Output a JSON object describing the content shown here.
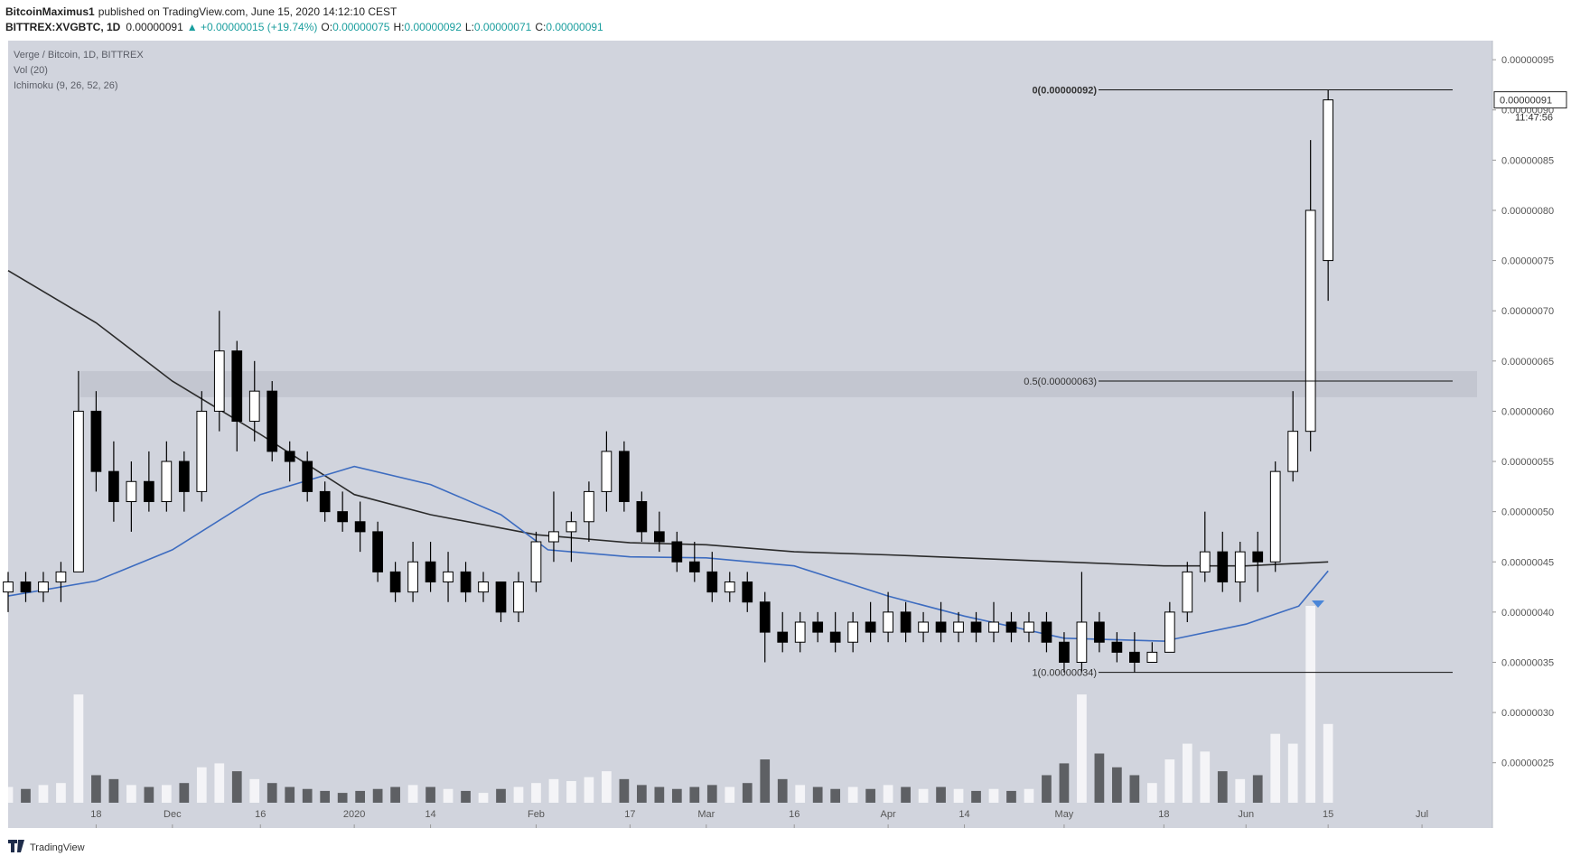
{
  "header": {
    "author": "BitcoinMaximus1",
    "published": "published on TradingView.com, June 15, 2020 14:12:10 CEST",
    "symbol": "BITTREX:XVGBTC, 1D",
    "last": "0.00000091",
    "change": "▲ +0.00000015 (+19.74%)",
    "ohlc": [
      {
        "key": "O:",
        "value": "0.00000075"
      },
      {
        "key": "H:",
        "value": "0.00000092"
      },
      {
        "key": "L:",
        "value": "0.00000071"
      },
      {
        "key": "C:",
        "value": "0.00000091"
      }
    ]
  },
  "footer": {
    "brand": "TradingView"
  },
  "chart_data": {
    "type": "candlestick",
    "legend": [
      "Verge / Bitcoin, 1D, BITTREX",
      "Vol (20)",
      "Ichimoku (9, 26, 52, 26)"
    ],
    "up_color": "#ffffff",
    "down_color": "#000000",
    "xlim": [
      "2019-11-03",
      "2020-07-13"
    ],
    "xticks": [
      {
        "value": "2019-11-18",
        "label": "18"
      },
      {
        "value": "2019-12-01",
        "label": "Dec"
      },
      {
        "value": "2019-12-16",
        "label": "16"
      },
      {
        "value": "2020-01-01",
        "label": "2020"
      },
      {
        "value": "2020-01-14",
        "label": "14"
      },
      {
        "value": "2020-02-01",
        "label": "Feb"
      },
      {
        "value": "2020-02-17",
        "label": "17"
      },
      {
        "value": "2020-03-01",
        "label": "Mar"
      },
      {
        "value": "2020-03-16",
        "label": "16"
      },
      {
        "value": "2020-04-01",
        "label": "Apr"
      },
      {
        "value": "2020-04-14",
        "label": "14"
      },
      {
        "value": "2020-05-01",
        "label": "May"
      },
      {
        "value": "2020-05-18",
        "label": "18"
      },
      {
        "value": "2020-06-01",
        "label": "Jun"
      },
      {
        "value": "2020-06-15",
        "label": "15"
      },
      {
        "value": "2020-07-01",
        "label": "Jul"
      }
    ],
    "ylim": [
      1.85e-07,
      9.69e-07
    ],
    "yticks": [
      {
        "value": 2.5e-07,
        "label": "0.00000025"
      },
      {
        "value": 3e-07,
        "label": "0.00000030"
      },
      {
        "value": 3.5e-07,
        "label": "0.00000035"
      },
      {
        "value": 4e-07,
        "label": "0.00000040"
      },
      {
        "value": 4.5e-07,
        "label": "0.00000045"
      },
      {
        "value": 5e-07,
        "label": "0.00000050"
      },
      {
        "value": 5.5e-07,
        "label": "0.00000055"
      },
      {
        "value": 6e-07,
        "label": "0.00000060"
      },
      {
        "value": 6.5e-07,
        "label": "0.00000065"
      },
      {
        "value": 7e-07,
        "label": "0.00000070"
      },
      {
        "value": 7.5e-07,
        "label": "0.00000075"
      },
      {
        "value": 8e-07,
        "label": "0.00000080"
      },
      {
        "value": 8.5e-07,
        "label": "0.00000085"
      },
      {
        "value": 9e-07,
        "label": "0.00000090"
      },
      {
        "value": 9.5e-07,
        "label": "0.00000095"
      }
    ],
    "grid": false,
    "last_price": {
      "value": 9.1e-07,
      "label": "0.00000091"
    },
    "countdown": "11:47:56",
    "zone": [
      6.14e-07,
      6.4e-07
    ],
    "zone_color": "#c3c6d0",
    "fib": [
      {
        "label": "0(0.00000092)",
        "value": 9.2e-07
      },
      {
        "label": "0.5(0.00000063)",
        "value": 6.3e-07
      },
      {
        "label": "1(0.00000034)",
        "value": 3.4e-07
      }
    ],
    "x": [
      "2019-11-03",
      "2019-11-06",
      "2019-11-09",
      "2019-11-12",
      "2019-11-15",
      "2019-11-18",
      "2019-11-21",
      "2019-11-24",
      "2019-11-27",
      "2019-11-30",
      "2019-12-03",
      "2019-12-06",
      "2019-12-09",
      "2019-12-12",
      "2019-12-15",
      "2019-12-18",
      "2019-12-21",
      "2019-12-24",
      "2019-12-27",
      "2019-12-30",
      "2020-01-02",
      "2020-01-05",
      "2020-01-08",
      "2020-01-11",
      "2020-01-14",
      "2020-01-17",
      "2020-01-20",
      "2020-01-23",
      "2020-01-26",
      "2020-01-29",
      "2020-02-01",
      "2020-02-04",
      "2020-02-07",
      "2020-02-10",
      "2020-02-13",
      "2020-02-16",
      "2020-02-19",
      "2020-02-22",
      "2020-02-25",
      "2020-02-28",
      "2020-03-02",
      "2020-03-05",
      "2020-03-08",
      "2020-03-11",
      "2020-03-14",
      "2020-03-17",
      "2020-03-20",
      "2020-03-23",
      "2020-03-26",
      "2020-03-29",
      "2020-04-01",
      "2020-04-04",
      "2020-04-07",
      "2020-04-10",
      "2020-04-13",
      "2020-04-16",
      "2020-04-19",
      "2020-04-22",
      "2020-04-25",
      "2020-04-28",
      "2020-05-01",
      "2020-05-04",
      "2020-05-07",
      "2020-05-10",
      "2020-05-13",
      "2020-05-16",
      "2020-05-19",
      "2020-05-22",
      "2020-05-25",
      "2020-05-28",
      "2020-05-31",
      "2020-06-03",
      "2020-06-06",
      "2020-06-09",
      "2020-06-12",
      "2020-06-15"
    ],
    "open": [
      4.2e-07,
      4.3e-07,
      4.2e-07,
      4.3e-07,
      4.4e-07,
      6e-07,
      5.4e-07,
      5.1e-07,
      5.3e-07,
      5.1e-07,
      5.5e-07,
      5.2e-07,
      6e-07,
      6.6e-07,
      5.9e-07,
      6.2e-07,
      5.6e-07,
      5.5e-07,
      5.2e-07,
      5e-07,
      4.9e-07,
      4.8e-07,
      4.4e-07,
      4.2e-07,
      4.5e-07,
      4.3e-07,
      4.4e-07,
      4.2e-07,
      4.3e-07,
      4e-07,
      4.3e-07,
      4.7e-07,
      4.8e-07,
      4.9e-07,
      5.2e-07,
      5.6e-07,
      5.1e-07,
      4.8e-07,
      4.7e-07,
      4.5e-07,
      4.4e-07,
      4.2e-07,
      4.3e-07,
      4.1e-07,
      3.8e-07,
      3.7e-07,
      3.9e-07,
      3.8e-07,
      3.7e-07,
      3.9e-07,
      3.8e-07,
      4e-07,
      3.8e-07,
      3.9e-07,
      3.8e-07,
      3.9e-07,
      3.8e-07,
      3.9e-07,
      3.8e-07,
      3.9e-07,
      3.7e-07,
      3.5e-07,
      3.9e-07,
      3.7e-07,
      3.6e-07,
      3.5e-07,
      3.6e-07,
      4e-07,
      4.4e-07,
      4.6e-07,
      4.3e-07,
      4.6e-07,
      4.5e-07,
      5.4e-07,
      5.8e-07,
      7.5e-07
    ],
    "high": [
      4.4e-07,
      4.4e-07,
      4.4e-07,
      4.5e-07,
      6.4e-07,
      6.2e-07,
      5.7e-07,
      5.5e-07,
      5.6e-07,
      5.7e-07,
      5.6e-07,
      6.2e-07,
      7e-07,
      6.7e-07,
      6.5e-07,
      6.3e-07,
      5.7e-07,
      5.6e-07,
      5.3e-07,
      5.2e-07,
      5.1e-07,
      4.9e-07,
      4.5e-07,
      4.7e-07,
      4.7e-07,
      4.6e-07,
      4.5e-07,
      4.4e-07,
      4.3e-07,
      4.4e-07,
      4.8e-07,
      5.2e-07,
      5e-07,
      5.3e-07,
      5.8e-07,
      5.7e-07,
      5.2e-07,
      5e-07,
      4.8e-07,
      4.7e-07,
      4.6e-07,
      4.4e-07,
      4.4e-07,
      4.2e-07,
      4e-07,
      4e-07,
      4e-07,
      4e-07,
      4e-07,
      4.1e-07,
      4.2e-07,
      4.1e-07,
      4e-07,
      4.1e-07,
      4e-07,
      4e-07,
      4.1e-07,
      4e-07,
      4e-07,
      4e-07,
      3.8e-07,
      4.4e-07,
      4e-07,
      3.8e-07,
      3.8e-07,
      3.7e-07,
      4.1e-07,
      4.5e-07,
      5e-07,
      4.8e-07,
      4.7e-07,
      4.8e-07,
      5.5e-07,
      6.2e-07,
      8.7e-07,
      9.2e-07
    ],
    "low": [
      4e-07,
      4.1e-07,
      4.1e-07,
      4.1e-07,
      4.4e-07,
      5.2e-07,
      4.9e-07,
      4.8e-07,
      5e-07,
      5e-07,
      5e-07,
      5.1e-07,
      5.8e-07,
      5.6e-07,
      5.7e-07,
      5.5e-07,
      5.3e-07,
      5.1e-07,
      4.9e-07,
      4.8e-07,
      4.6e-07,
      4.3e-07,
      4.1e-07,
      4.1e-07,
      4.2e-07,
      4.1e-07,
      4.1e-07,
      4.1e-07,
      3.9e-07,
      3.9e-07,
      4.2e-07,
      4.5e-07,
      4.5e-07,
      4.7e-07,
      5e-07,
      5e-07,
      4.7e-07,
      4.6e-07,
      4.4e-07,
      4.3e-07,
      4.1e-07,
      4.1e-07,
      4e-07,
      3.5e-07,
      3.6e-07,
      3.6e-07,
      3.7e-07,
      3.6e-07,
      3.6e-07,
      3.7e-07,
      3.7e-07,
      3.7e-07,
      3.7e-07,
      3.7e-07,
      3.7e-07,
      3.7e-07,
      3.7e-07,
      3.7e-07,
      3.7e-07,
      3.6e-07,
      3.4e-07,
      3.4e-07,
      3.6e-07,
      3.5e-07,
      3.4e-07,
      3.5e-07,
      3.6e-07,
      3.9e-07,
      4.3e-07,
      4.2e-07,
      4.1e-07,
      4.2e-07,
      4.4e-07,
      5.3e-07,
      5.6e-07,
      7.1e-07
    ],
    "close": [
      4.3e-07,
      4.2e-07,
      4.3e-07,
      4.4e-07,
      6e-07,
      5.4e-07,
      5.1e-07,
      5.3e-07,
      5.1e-07,
      5.5e-07,
      5.2e-07,
      6e-07,
      6.6e-07,
      5.9e-07,
      6.2e-07,
      5.6e-07,
      5.5e-07,
      5.2e-07,
      5e-07,
      4.9e-07,
      4.8e-07,
      4.4e-07,
      4.2e-07,
      4.5e-07,
      4.3e-07,
      4.4e-07,
      4.2e-07,
      4.3e-07,
      4e-07,
      4.3e-07,
      4.7e-07,
      4.8e-07,
      4.9e-07,
      5.2e-07,
      5.6e-07,
      5.1e-07,
      4.8e-07,
      4.7e-07,
      4.5e-07,
      4.4e-07,
      4.2e-07,
      4.3e-07,
      4.1e-07,
      3.8e-07,
      3.7e-07,
      3.9e-07,
      3.8e-07,
      3.7e-07,
      3.9e-07,
      3.8e-07,
      4e-07,
      3.8e-07,
      3.9e-07,
      3.8e-07,
      3.9e-07,
      3.8e-07,
      3.9e-07,
      3.8e-07,
      3.9e-07,
      3.7e-07,
      3.5e-07,
      3.9e-07,
      3.7e-07,
      3.6e-07,
      3.5e-07,
      3.6e-07,
      4e-07,
      4.4e-07,
      4.6e-07,
      4.3e-07,
      4.6e-07,
      4.5e-07,
      5.4e-07,
      5.8e-07,
      8e-07,
      9.1e-07
    ],
    "volume": [
      8,
      7,
      9,
      10,
      55,
      14,
      12,
      9,
      8,
      9,
      10,
      18,
      20,
      16,
      12,
      10,
      8,
      7,
      6,
      5,
      6,
      7,
      8,
      9,
      8,
      7,
      6,
      5,
      7,
      8,
      10,
      12,
      11,
      13,
      16,
      12,
      9,
      8,
      7,
      8,
      9,
      8,
      10,
      22,
      12,
      9,
      8,
      7,
      8,
      7,
      9,
      8,
      7,
      8,
      7,
      6,
      7,
      6,
      7,
      14,
      20,
      55,
      25,
      18,
      14,
      10,
      22,
      30,
      26,
      16,
      12,
      14,
      35,
      30,
      100,
      40
    ],
    "lines": [
      {
        "color": "#2b2b2b",
        "x": [
          "2019-11-03",
          "2019-11-18",
          "2019-12-01",
          "2019-12-16",
          "2020-01-01",
          "2020-01-14",
          "2020-02-01",
          "2020-02-17",
          "2020-03-01",
          "2020-03-16",
          "2020-04-01",
          "2020-05-01",
          "2020-05-18",
          "2020-06-01",
          "2020-06-15"
        ],
        "values": [
          7.4e-07,
          6.88e-07,
          6.3e-07,
          5.77e-07,
          5.17e-07,
          4.97e-07,
          4.77e-07,
          4.69e-07,
          4.67e-07,
          4.6e-07,
          4.57e-07,
          4.5e-07,
          4.46e-07,
          4.46e-07,
          4.5e-07
        ]
      },
      {
        "color": "#3d6cc0",
        "x": [
          "2019-11-03",
          "2019-11-18",
          "2019-12-01",
          "2019-12-16",
          "2020-01-01",
          "2020-01-14",
          "2020-01-26",
          "2020-02-03",
          "2020-02-17",
          "2020-03-01",
          "2020-03-16",
          "2020-04-01",
          "2020-04-14",
          "2020-05-01",
          "2020-05-18",
          "2020-06-01",
          "2020-06-10",
          "2020-06-15"
        ],
        "values": [
          4.16e-07,
          4.31e-07,
          4.62e-07,
          5.17e-07,
          5.45e-07,
          5.27e-07,
          4.97e-07,
          4.62e-07,
          4.55e-07,
          4.54e-07,
          4.46e-07,
          4.16e-07,
          3.96e-07,
          3.74e-07,
          3.71e-07,
          3.88e-07,
          4.06e-07,
          4.41e-07
        ]
      }
    ]
  }
}
